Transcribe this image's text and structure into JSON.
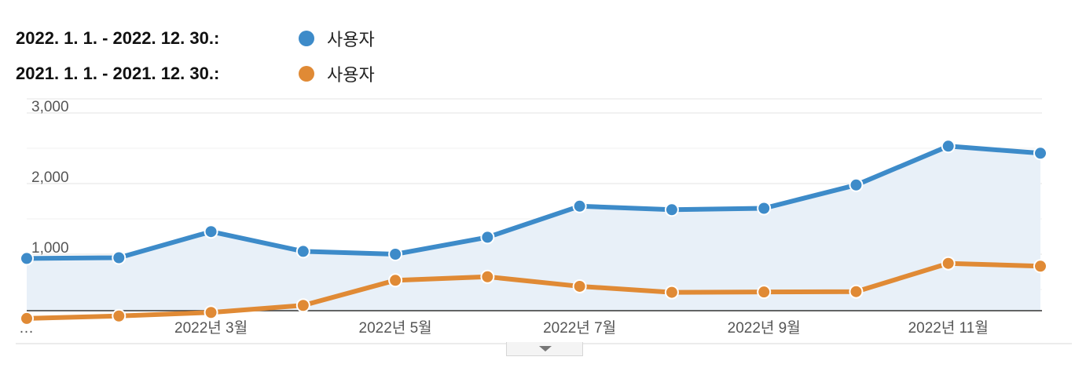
{
  "legend": [
    {
      "range": "2022. 1. 1. - 2022. 12. 30.:",
      "label": "사용자",
      "color": "#3d8bc9"
    },
    {
      "range": "2021. 1. 1. - 2021. 12. 30.:",
      "label": "사용자",
      "color": "#e08a35"
    }
  ],
  "chart_data": {
    "type": "line",
    "x": [
      "2022-01",
      "2022-02",
      "2022-03",
      "2022-04",
      "2022-05",
      "2022-06",
      "2022-07",
      "2022-08",
      "2022-09",
      "2022-10",
      "2022-11",
      "2022-12"
    ],
    "x_tick_labels": [
      "…",
      "2022년 3월",
      "2022년 5월",
      "2022년 7월",
      "2022년 9월",
      "2022년 11월"
    ],
    "x_tick_months": [
      "2022-01",
      "2022-03",
      "2022-05",
      "2022-07",
      "2022-09",
      "2022-11"
    ],
    "y_ticks": [
      1000,
      2000,
      3000
    ],
    "y_tick_labels": [
      "1,000",
      "2,000",
      "3,000"
    ],
    "ylim": [
      0,
      3000
    ],
    "grid": true,
    "area_fill_series": 0,
    "area_fill_color": "#e8f0f8",
    "series": [
      {
        "name": "사용자",
        "color": "#3d8bc9",
        "values": [
          940,
          950,
          1320,
          1040,
          1000,
          1240,
          1680,
          1630,
          1650,
          1980,
          2530,
          2430
        ]
      },
      {
        "name": "사용자",
        "color": "#e08a35",
        "values": [
          90,
          125,
          175,
          275,
          630,
          680,
          545,
          460,
          465,
          470,
          870,
          830
        ]
      }
    ]
  },
  "drawer_toggle": {
    "icon": "triangle-down-icon"
  }
}
